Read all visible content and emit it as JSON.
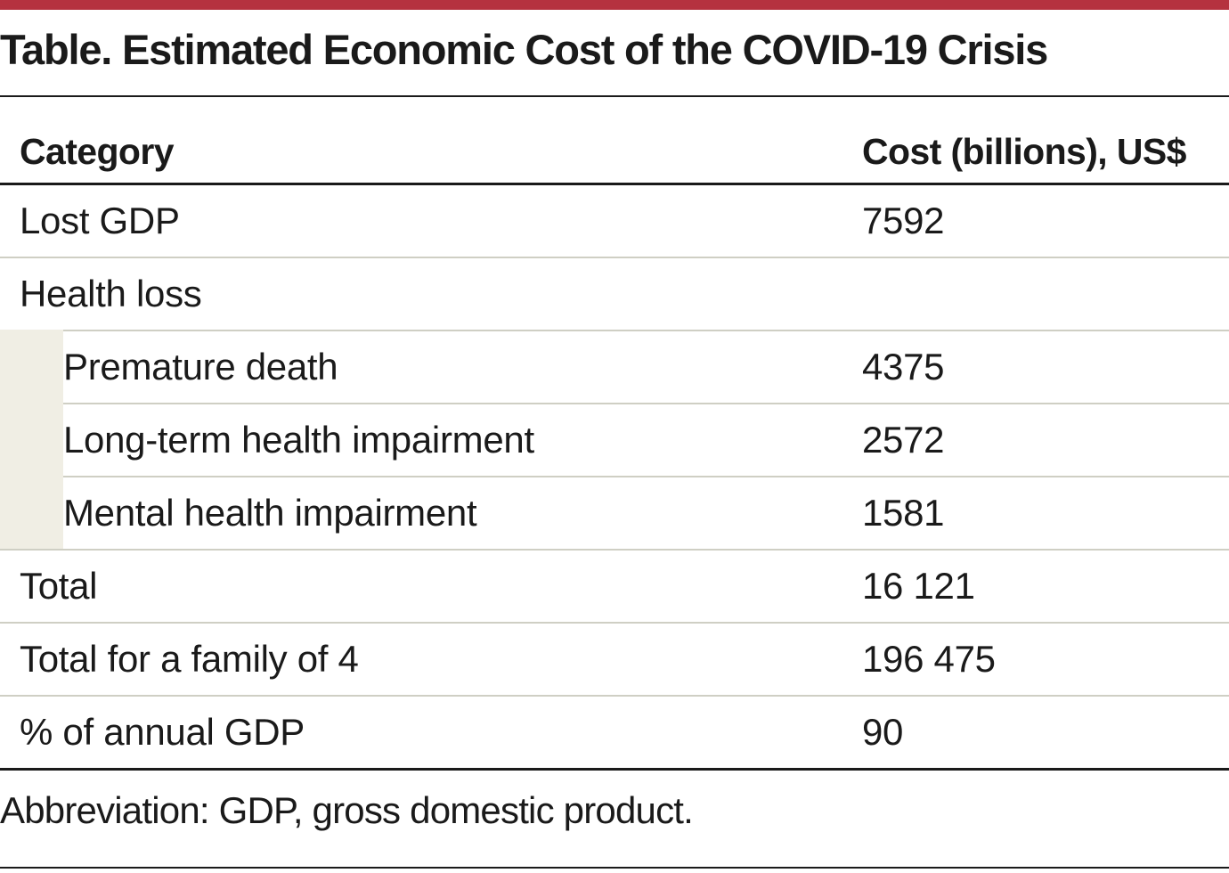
{
  "colors": {
    "accent": "#b5323f",
    "indent_fill": "#f0eee4",
    "rule": "#1a1a1a",
    "row_divider": "#cfcfc4"
  },
  "table": {
    "title": "Table. Estimated Economic Cost of the COVID-19 Crisis",
    "headers": {
      "category": "Category",
      "cost": "Cost (billions), US$"
    },
    "rows": [
      {
        "category": "Lost GDP",
        "cost": "7592",
        "indent": false
      },
      {
        "category": "Health loss",
        "cost": "",
        "indent": false
      },
      {
        "category": "Premature death",
        "cost": "4375",
        "indent": true
      },
      {
        "category": "Long-term health impairment",
        "cost": "2572",
        "indent": true
      },
      {
        "category": "Mental health impairment",
        "cost": "1581",
        "indent": true
      },
      {
        "category": "Total",
        "cost": "16 121",
        "indent": false
      },
      {
        "category": "Total for a family of 4",
        "cost": "196 475",
        "indent": false
      },
      {
        "category": "% of annual GDP",
        "cost": "90",
        "indent": false
      }
    ],
    "footnote": "Abbreviation: GDP, gross domestic product."
  }
}
